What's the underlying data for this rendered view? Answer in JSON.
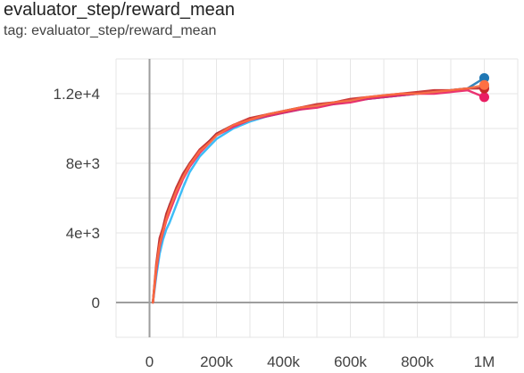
{
  "card": {
    "title": "evaluator_step/reward_mean",
    "tag": "tag: evaluator_step/reward_mean"
  },
  "colors": {
    "grid": "#e6e6e6",
    "zero_axis": "#9e9e9e",
    "tick_text": "#424242"
  },
  "chart_data": {
    "type": "line",
    "title": "evaluator_step/reward_mean",
    "xlabel": "",
    "ylabel": "",
    "xlim": [
      -100000,
      1100000
    ],
    "ylim": [
      -2000,
      14000
    ],
    "x_ticks": [
      0,
      200000,
      400000,
      600000,
      800000,
      1000000
    ],
    "x_tick_labels": [
      "0",
      "200k",
      "400k",
      "600k",
      "800k",
      "1M"
    ],
    "y_ticks": [
      0,
      4000,
      8000,
      12000
    ],
    "y_tick_labels": [
      "0",
      "4e+3",
      "8e+3",
      "1.2e+4"
    ],
    "grid": true,
    "series": [
      {
        "color": "#1f77b4",
        "x": [
          10000,
          20000,
          30000,
          40000,
          50000,
          60000,
          80000,
          100000,
          120000,
          150000,
          180000,
          200000,
          250000,
          300000,
          350000,
          400000,
          450000,
          500000,
          550000,
          600000,
          650000,
          700000,
          750000,
          800000,
          850000,
          900000,
          950000,
          1000000
        ],
        "y": [
          0,
          2000,
          3500,
          4200,
          5000,
          5600,
          6500,
          7300,
          8000,
          8700,
          9300,
          9700,
          10200,
          10500,
          10800,
          11000,
          11200,
          11300,
          11500,
          11600,
          11700,
          11800,
          11900,
          12000,
          12100,
          12200,
          12300,
          12900
        ]
      },
      {
        "color": "#29b6f6",
        "x": [
          10000,
          20000,
          30000,
          40000,
          50000,
          60000,
          80000,
          100000,
          120000,
          150000,
          180000,
          200000,
          250000,
          300000,
          350000,
          400000,
          450000,
          500000,
          550000,
          600000,
          650000,
          700000,
          750000,
          800000,
          850000,
          900000,
          950000,
          1000000
        ],
        "y": [
          0,
          1500,
          2800,
          3600,
          4200,
          4600,
          5600,
          6600,
          7500,
          8400,
          9000,
          9400,
          10000,
          10400,
          10700,
          10900,
          11100,
          11300,
          11400,
          11600,
          11700,
          11800,
          11900,
          12000,
          12100,
          12200,
          12300,
          12400
        ]
      },
      {
        "color": "#e91e63",
        "x": [
          10000,
          20000,
          30000,
          40000,
          50000,
          60000,
          80000,
          100000,
          120000,
          150000,
          180000,
          200000,
          250000,
          300000,
          350000,
          400000,
          450000,
          500000,
          550000,
          600000,
          650000,
          700000,
          750000,
          800000,
          850000,
          900000,
          950000,
          1000000
        ],
        "y": [
          0,
          1800,
          3200,
          4000,
          4700,
          5200,
          6200,
          7100,
          7800,
          8600,
          9200,
          9600,
          10100,
          10500,
          10700,
          10900,
          11100,
          11200,
          11400,
          11500,
          11700,
          11800,
          11900,
          12000,
          12000,
          12100,
          12200,
          11800
        ]
      },
      {
        "color": "#c62828",
        "x": [
          10000,
          20000,
          30000,
          40000,
          50000,
          60000,
          80000,
          100000,
          120000,
          150000,
          180000,
          200000,
          250000,
          300000,
          350000,
          400000,
          450000,
          500000,
          550000,
          600000,
          650000,
          700000,
          750000,
          800000,
          850000,
          900000,
          950000,
          1000000
        ],
        "y": [
          0,
          2200,
          3700,
          4300,
          5100,
          5600,
          6600,
          7400,
          8000,
          8800,
          9300,
          9700,
          10200,
          10600,
          10800,
          11000,
          11200,
          11400,
          11500,
          11700,
          11800,
          11900,
          12000,
          12100,
          12200,
          12200,
          12300,
          12300
        ]
      },
      {
        "color": "#ff7043",
        "x": [
          10000,
          20000,
          30000,
          40000,
          50000,
          60000,
          80000,
          100000,
          120000,
          150000,
          180000,
          200000,
          250000,
          300000,
          350000,
          400000,
          450000,
          500000,
          550000,
          600000,
          650000,
          700000,
          750000,
          800000,
          850000,
          900000,
          950000,
          1000000
        ],
        "y": [
          0,
          2000,
          3300,
          4100,
          4800,
          5400,
          6400,
          7200,
          7900,
          8700,
          9200,
          9600,
          10200,
          10500,
          10800,
          11000,
          11200,
          11300,
          11500,
          11600,
          11800,
          11900,
          12000,
          12000,
          12100,
          12200,
          12300,
          12500
        ]
      }
    ]
  }
}
